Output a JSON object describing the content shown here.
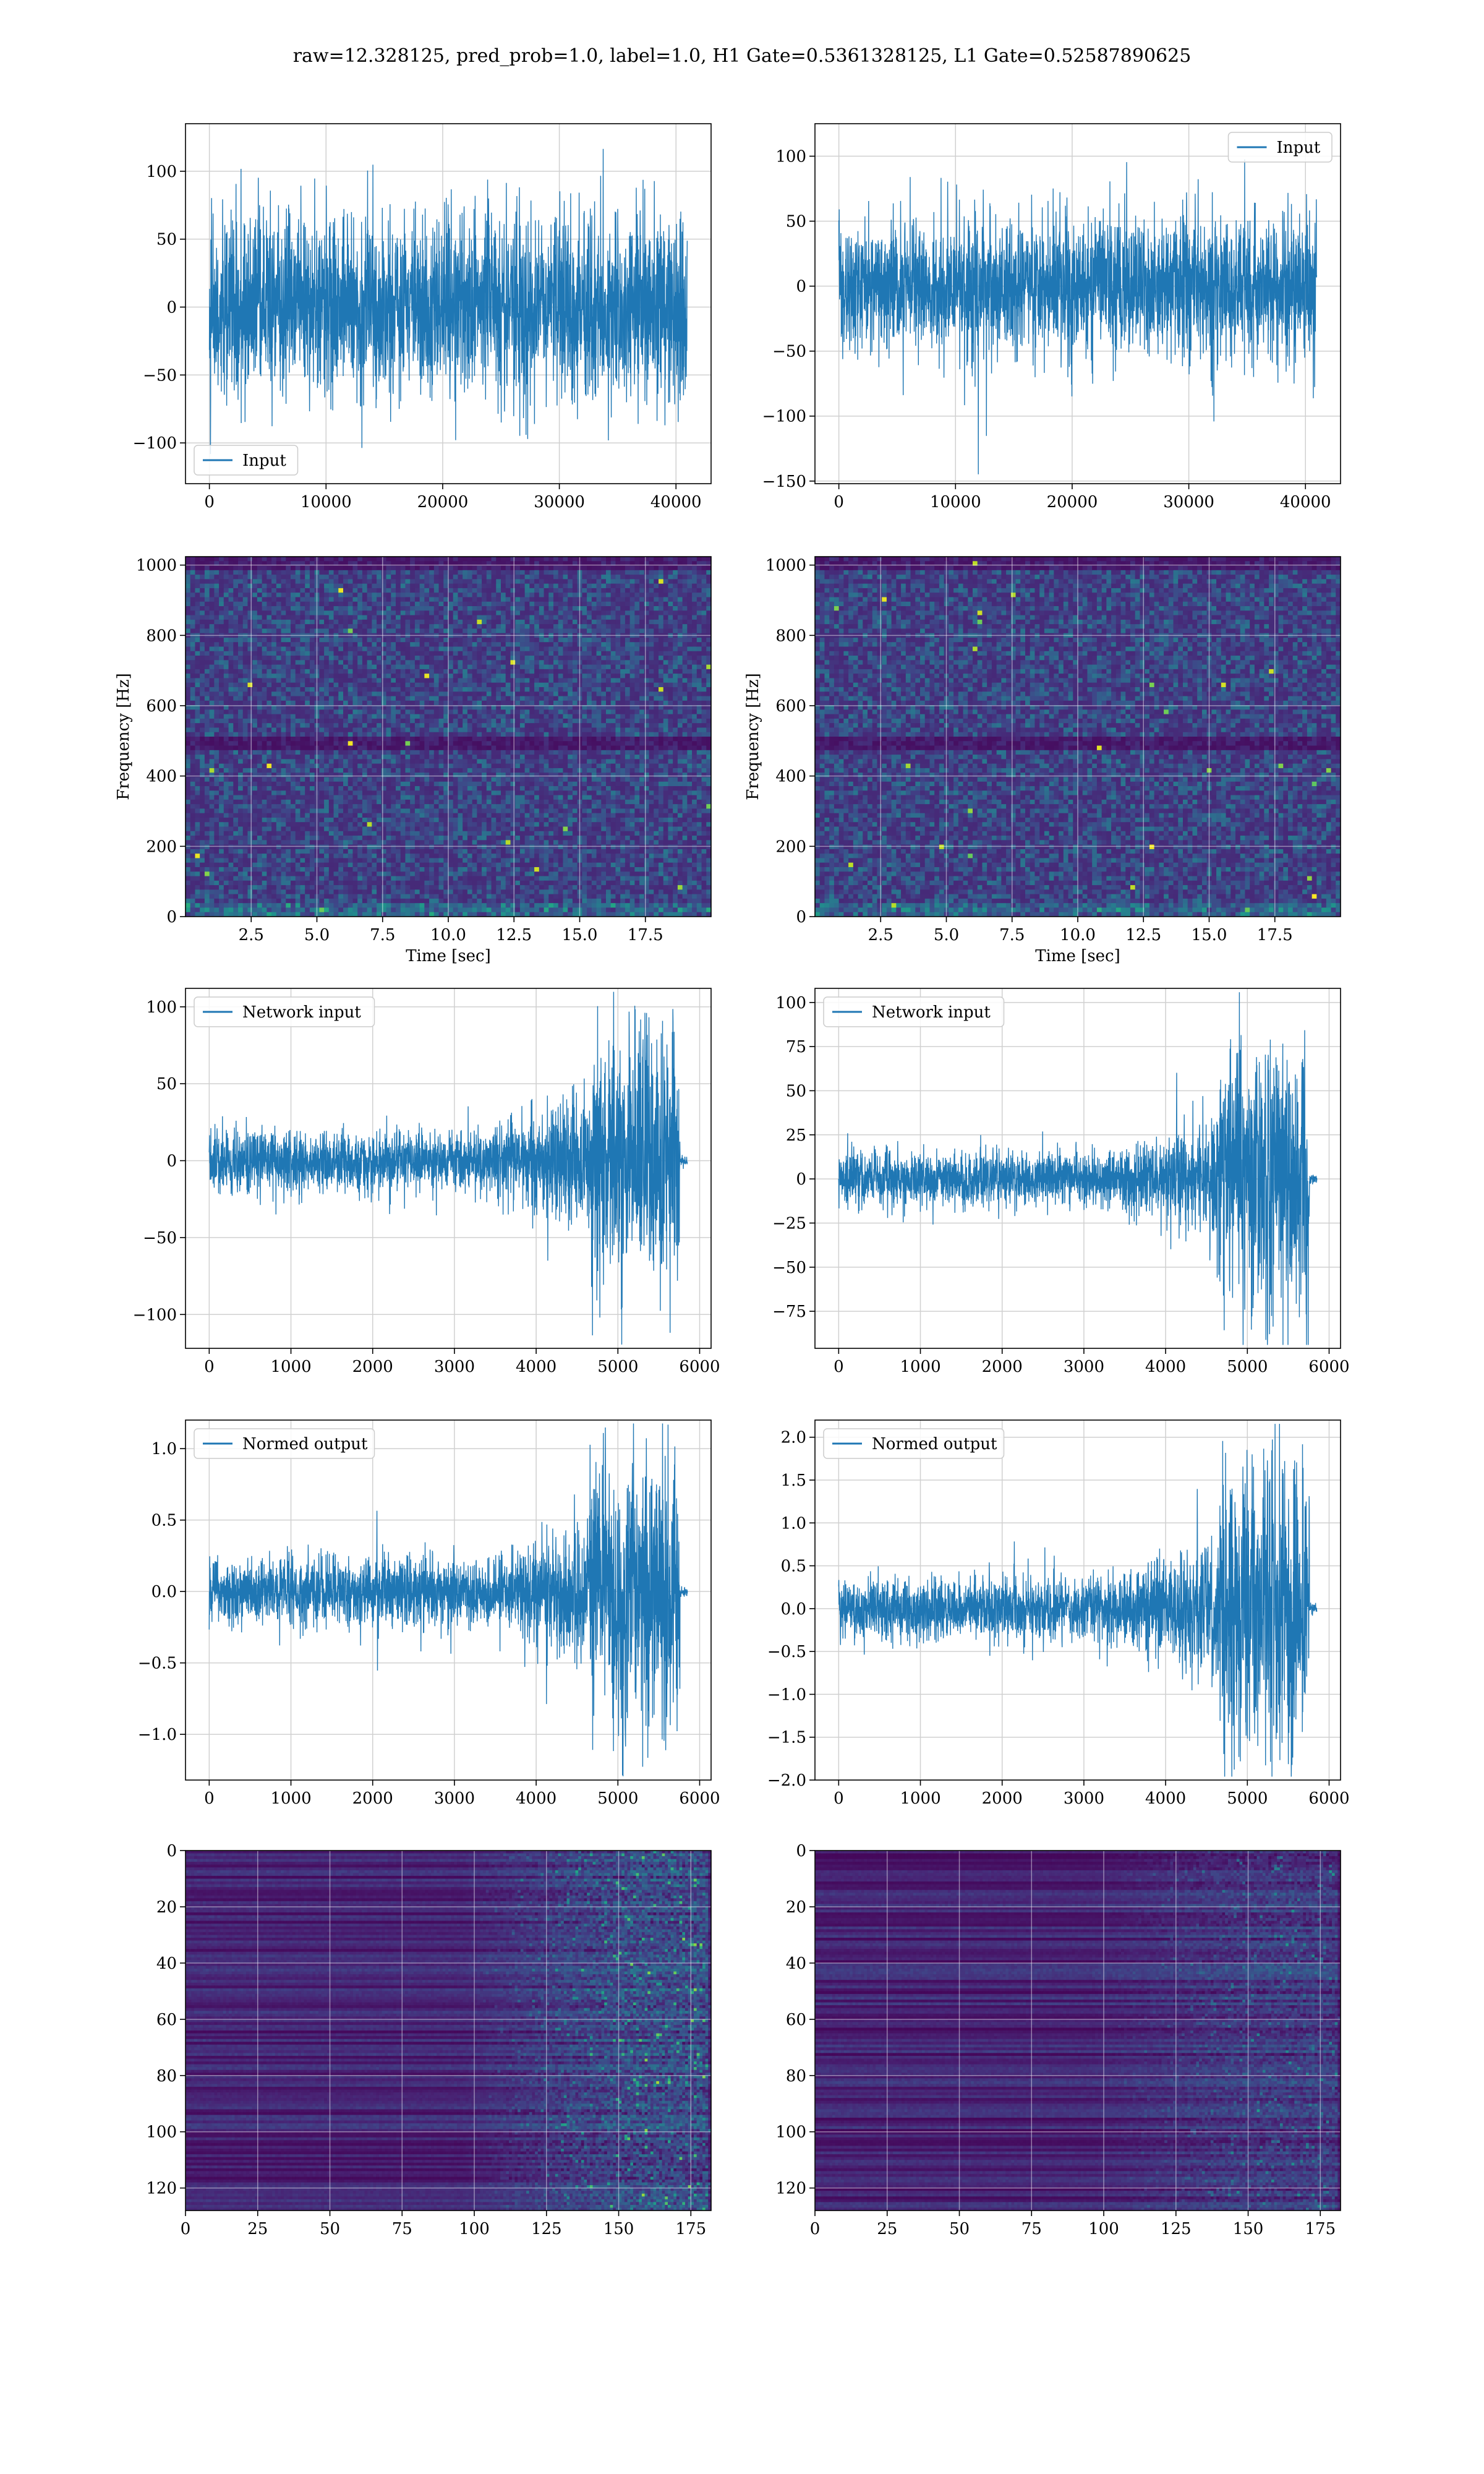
{
  "figure": {
    "title": "raw=12.328125, pred_prob=1.0, label=1.0, H1 Gate=0.5361328125, L1 Gate=0.52587890625"
  },
  "colors": {
    "line": "#1f77b4",
    "grid": "#d0d0d0",
    "viridis_low": "#440154",
    "viridis_mid": "#21918c",
    "viridis_high": "#fde725"
  },
  "chart_data": [
    {
      "id": "p1",
      "type": "line",
      "row": 0,
      "col": 0,
      "series": [
        {
          "name": "Input"
        }
      ],
      "legend": "lower-left",
      "n": 40960,
      "amp": 60,
      "env": "flat",
      "xlim": [
        -2048,
        43008
      ],
      "ylim": [
        -130,
        135
      ],
      "xticks": [
        0,
        10000,
        20000,
        30000,
        40000
      ],
      "yticks": [
        -100,
        -50,
        0,
        50,
        100
      ],
      "xlabel": "",
      "ylabel": "",
      "grid": true
    },
    {
      "id": "p2",
      "type": "line",
      "row": 0,
      "col": 1,
      "series": [
        {
          "name": "Input"
        }
      ],
      "legend": "upper-right",
      "n": 40960,
      "amp": 48,
      "env": "flat",
      "xlim": [
        -2048,
        43008
      ],
      "ylim": [
        -152,
        125
      ],
      "xticks": [
        0,
        10000,
        20000,
        30000,
        40000
      ],
      "yticks": [
        -150,
        -100,
        -50,
        0,
        50,
        100
      ],
      "xlabel": "",
      "ylabel": "",
      "grid": true
    },
    {
      "id": "p3",
      "type": "heatmap",
      "row": 1,
      "col": 0,
      "style": "spectrogram",
      "xlim": [
        0,
        20
      ],
      "ylim": [
        0,
        1024
      ],
      "xticks": [
        2.5,
        5.0,
        7.5,
        10.0,
        12.5,
        15.0,
        17.5
      ],
      "yticks": [
        0,
        200,
        400,
        600,
        800,
        1000
      ],
      "xlabel": "Time [sec]",
      "ylabel": "Frequency [Hz]",
      "grid": true
    },
    {
      "id": "p4",
      "type": "heatmap",
      "row": 1,
      "col": 1,
      "style": "spectrogram",
      "xlim": [
        0,
        20
      ],
      "ylim": [
        0,
        1024
      ],
      "xticks": [
        2.5,
        5.0,
        7.5,
        10.0,
        12.5,
        15.0,
        17.5
      ],
      "yticks": [
        0,
        200,
        400,
        600,
        800,
        1000
      ],
      "xlabel": "Time [sec]",
      "ylabel": "Frequency [Hz]",
      "grid": true
    },
    {
      "id": "p5",
      "type": "line",
      "row": 2,
      "col": 0,
      "series": [
        {
          "name": "Network input"
        }
      ],
      "legend": "upper-left",
      "n": 5850,
      "amp": 18,
      "env": "chirp",
      "peak": 90,
      "xlim": [
        -290,
        6140
      ],
      "ylim": [
        -122,
        112
      ],
      "xticks": [
        0,
        1000,
        2000,
        3000,
        4000,
        5000,
        6000
      ],
      "yticks": [
        -100,
        -50,
        0,
        50,
        100
      ],
      "xlabel": "",
      "ylabel": "",
      "grid": true
    },
    {
      "id": "p6",
      "type": "line",
      "row": 2,
      "col": 1,
      "series": [
        {
          "name": "Network input"
        }
      ],
      "legend": "upper-left",
      "n": 5850,
      "amp": 14,
      "env": "chirp",
      "peak": 78,
      "xlim": [
        -290,
        6140
      ],
      "ylim": [
        -96,
        108
      ],
      "xticks": [
        0,
        1000,
        2000,
        3000,
        4000,
        5000,
        6000
      ],
      "yticks": [
        -75,
        -50,
        -25,
        0,
        25,
        50,
        75,
        100
      ],
      "xlabel": "",
      "ylabel": "",
      "grid": true
    },
    {
      "id": "p7",
      "type": "line",
      "row": 3,
      "col": 0,
      "series": [
        {
          "name": "Normed output"
        }
      ],
      "legend": "upper-left",
      "n": 5850,
      "amp": 0.2,
      "env": "chirp",
      "peak": 0.95,
      "xlim": [
        -290,
        6140
      ],
      "ylim": [
        -1.32,
        1.2
      ],
      "xticks": [
        0,
        1000,
        2000,
        3000,
        4000,
        5000,
        6000
      ],
      "yticks": [
        -1.0,
        -0.5,
        0.0,
        0.5,
        1.0
      ],
      "xlabel": "",
      "ylabel": "",
      "grid": true
    },
    {
      "id": "p8",
      "type": "line",
      "row": 3,
      "col": 1,
      "series": [
        {
          "name": "Normed output"
        }
      ],
      "legend": "upper-left",
      "n": 5850,
      "amp": 0.33,
      "env": "chirp",
      "peak": 1.75,
      "xlim": [
        -290,
        6140
      ],
      "ylim": [
        -2.0,
        2.2
      ],
      "xticks": [
        0,
        1000,
        2000,
        3000,
        4000,
        5000,
        6000
      ],
      "yticks": [
        -2.0,
        -1.5,
        -1.0,
        -0.5,
        0.0,
        0.5,
        1.0,
        1.5,
        2.0
      ],
      "xlabel": "",
      "ylabel": "",
      "grid": true
    },
    {
      "id": "p9",
      "type": "heatmap",
      "row": 4,
      "col": 0,
      "style": "feature-map",
      "strength": 1.0,
      "xlim": [
        0,
        182
      ],
      "ylim": [
        128,
        0
      ],
      "xticks": [
        0,
        25,
        50,
        75,
        100,
        125,
        150,
        175
      ],
      "yticks": [
        0,
        20,
        40,
        60,
        80,
        100,
        120
      ],
      "xlabel": "",
      "ylabel": "",
      "grid": true
    },
    {
      "id": "p10",
      "type": "heatmap",
      "row": 4,
      "col": 1,
      "style": "feature-map",
      "strength": 0.55,
      "xlim": [
        0,
        182
      ],
      "ylim": [
        128,
        0
      ],
      "xticks": [
        0,
        25,
        50,
        75,
        100,
        125,
        150,
        175
      ],
      "yticks": [
        0,
        20,
        40,
        60,
        80,
        100,
        120
      ],
      "xlabel": "",
      "ylabel": "",
      "grid": true
    }
  ]
}
